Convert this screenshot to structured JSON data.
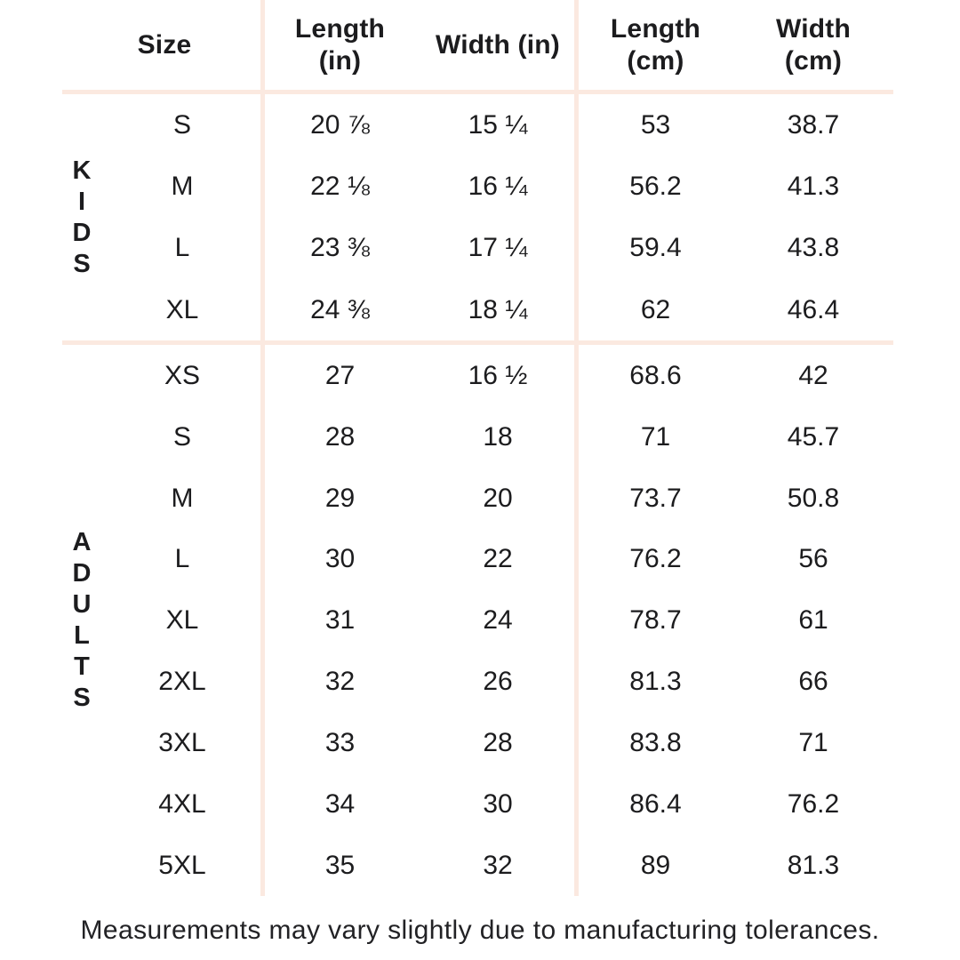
{
  "table": {
    "headers": [
      "Size",
      "Length\n(in)",
      "Width (in)",
      "Length\n(cm)",
      "Width\n(cm)"
    ],
    "sections": [
      {
        "name": "kids",
        "label": "KIDS",
        "label_stacked": "K\nI\nD\nS",
        "rows": [
          [
            "S",
            "20 ⅞",
            "15 ¼",
            "53",
            "38.7"
          ],
          [
            "M",
            "22 ⅛",
            "16 ¼",
            "56.2",
            "41.3"
          ],
          [
            "L",
            "23 ⅜",
            "17 ¼",
            "59.4",
            "43.8"
          ],
          [
            "XL",
            "24 ⅜",
            "18 ¼",
            "62",
            "46.4"
          ]
        ]
      },
      {
        "name": "adults",
        "label": "ADULTS",
        "label_stacked": "A\nD\nU\nL\nT\nS",
        "rows": [
          [
            "XS",
            "27",
            "16 ½",
            "68.6",
            "42"
          ],
          [
            "S",
            "28",
            "18",
            "71",
            "45.7"
          ],
          [
            "M",
            "29",
            "20",
            "73.7",
            "50.8"
          ],
          [
            "L",
            "30",
            "22",
            "76.2",
            "56"
          ],
          [
            "XL",
            "31",
            "24",
            "78.7",
            "61"
          ],
          [
            "2XL",
            "32",
            "26",
            "81.3",
            "66"
          ],
          [
            "3XL",
            "33",
            "28",
            "83.8",
            "71"
          ],
          [
            "4XL",
            "34",
            "30",
            "86.4",
            "76.2"
          ],
          [
            "5XL",
            "35",
            "32",
            "89",
            "81.3"
          ]
        ]
      }
    ]
  },
  "footer": {
    "note": "Measurements may vary slightly due to manufacturing tolerances."
  },
  "colors": {
    "divider": "#fbe9e0",
    "text": "#1c1c1e",
    "background": "#ffffff"
  }
}
